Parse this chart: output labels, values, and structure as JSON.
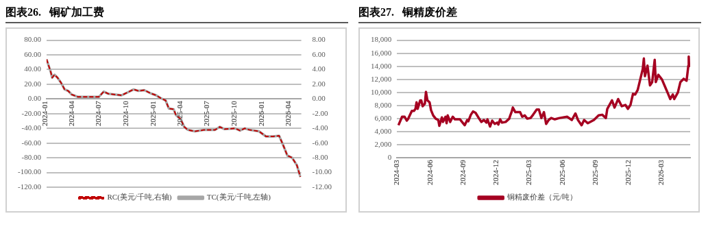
{
  "chart_data": [
    {
      "type": "line",
      "title": "图表26.   铜矿加工费",
      "legend": "bottom",
      "grid": "y",
      "xlim": [
        "2024-01-01",
        "2026-05-10"
      ],
      "xticks": [
        "2024-01",
        "2024-04",
        "2024-07",
        "2024-10",
        "2025-01",
        "2025-04",
        "2025-07",
        "2025-10",
        "2026-01",
        "2026-04"
      ],
      "ylim": [
        -120,
        80
      ],
      "yticks": [
        {
          "value": -120,
          "label": "-120.00"
        },
        {
          "value": -100,
          "label": "-100.00"
        },
        {
          "value": -80,
          "label": "-80.00"
        },
        {
          "value": -60,
          "label": "-60.00"
        },
        {
          "value": -40,
          "label": "-40.00"
        },
        {
          "value": -20,
          "label": "-20.00"
        },
        {
          "value": 0,
          "label": "0.00"
        },
        {
          "value": 20,
          "label": "20.00"
        },
        {
          "value": 40,
          "label": "40.00"
        },
        {
          "value": 60,
          "label": "60.00"
        },
        {
          "value": 80,
          "label": "80.00"
        }
      ],
      "y2lim": [
        -12,
        8
      ],
      "y2ticks": [
        {
          "value": -12,
          "label": "-12.00"
        },
        {
          "value": -10,
          "label": "-10.00"
        },
        {
          "value": -8,
          "label": "-8.00"
        },
        {
          "value": -6,
          "label": "-6.00"
        },
        {
          "value": -4,
          "label": "-4.00"
        },
        {
          "value": -2,
          "label": "-2.00"
        },
        {
          "value": 0,
          "label": "0.00"
        },
        {
          "value": 2,
          "label": "2.00"
        },
        {
          "value": 4,
          "label": "4.00"
        },
        {
          "value": 6,
          "label": "6.00"
        },
        {
          "value": 8,
          "label": "8.00"
        }
      ],
      "x": [
        "2024-01-01",
        "2024-01-15",
        "2024-01-20",
        "2024-01-28",
        "2024-02-07",
        "2024-02-19",
        "2024-03-02",
        "2024-03-14",
        "2024-03-26",
        "2024-04-15",
        "2024-05-09",
        "2024-06-26",
        "2024-07-12",
        "2024-07-28",
        "2024-08-21",
        "2024-09-10",
        "2024-10-01",
        "2024-10-21",
        "2024-11-06",
        "2024-11-26",
        "2024-12-16",
        "2025-01-05",
        "2025-01-21",
        "2025-02-06",
        "2025-02-17",
        "2025-03-05",
        "2025-03-13",
        "2025-03-28",
        "2025-04-10",
        "2025-04-22",
        "2025-05-16",
        "2025-06-17",
        "2025-07-23",
        "2025-08-08",
        "2025-08-24",
        "2025-09-29",
        "2025-10-15",
        "2025-10-31",
        "2025-11-16",
        "2025-12-18",
        "2026-01-11",
        "2026-02-04",
        "2026-02-24",
        "2026-03-08",
        "2026-03-24",
        "2026-04-09",
        "2026-04-25",
        "2026-05-07"
      ],
      "series": [
        {
          "name": "TC(美元/千吨,左轴)",
          "color": "#a6a6a6",
          "line_style": "solid",
          "values": [
            54,
            37,
            29,
            33,
            29,
            22,
            13,
            11,
            6,
            3,
            3,
            3,
            10,
            7,
            6,
            5,
            9,
            13,
            11,
            12,
            8,
            5,
            1,
            -2,
            -13,
            -14,
            -22,
            -27,
            -38,
            -42,
            -44,
            -42,
            -42,
            -38,
            -41,
            -40,
            -43,
            -40,
            -42,
            -44,
            -51,
            -51,
            -50,
            -61,
            -77,
            -80,
            -90,
            -106
          ]
        },
        {
          "name": "RC(美元/千吨,右轴)",
          "color": "#c00000",
          "line_style": "dashed",
          "axis": "y2",
          "values": [
            5.4,
            3.7,
            2.9,
            3.3,
            2.9,
            2.2,
            1.3,
            1.1,
            0.6,
            0.3,
            0.3,
            0.3,
            1.0,
            0.7,
            0.6,
            0.5,
            0.9,
            1.3,
            1.1,
            1.2,
            0.8,
            0.5,
            0.1,
            -0.2,
            -1.3,
            -1.4,
            -2.2,
            -2.7,
            -3.8,
            -4.2,
            -4.4,
            -4.2,
            -4.2,
            -3.8,
            -4.1,
            -4.0,
            -4.3,
            -4.0,
            -4.2,
            -4.4,
            -5.1,
            -5.1,
            -5.0,
            -6.1,
            -7.7,
            -8.0,
            -9.0,
            -10.6
          ]
        }
      ]
    },
    {
      "type": "line",
      "title": "图表27.   铜精废价差",
      "legend": "bottom",
      "grid": "y",
      "xlim": [
        "2024-02-26",
        "2026-05-16"
      ],
      "xticks": [
        "2024-03",
        "2024-06",
        "2024-09",
        "2024-12",
        "2025-03",
        "2025-06",
        "2025-09",
        "2025-12",
        "2026-03"
      ],
      "ylim": [
        0,
        18000
      ],
      "yticks": [
        0,
        {
          "value": 2000,
          "label": "2,000"
        },
        {
          "value": 4000,
          "label": "4,000"
        },
        {
          "value": 6000,
          "label": "6,000"
        },
        {
          "value": 8000,
          "label": "8,000"
        },
        {
          "value": 10000,
          "label": "10,000"
        },
        {
          "value": 12000,
          "label": "12,000"
        },
        {
          "value": 14000,
          "label": "14,000"
        },
        {
          "value": 16000,
          "label": "16,000"
        },
        {
          "value": 18000,
          "label": "18,000"
        }
      ],
      "x": [
        "2024-03-01",
        "2024-03-11",
        "2024-03-18",
        "2024-03-24",
        "2024-03-28",
        "2024-04-07",
        "2024-04-13",
        "2024-04-17",
        "2024-04-20",
        "2024-04-23",
        "2024-04-30",
        "2024-05-03",
        "2024-05-07",
        "2024-05-13",
        "2024-05-16",
        "2024-05-20",
        "2024-05-26",
        "2024-05-30",
        "2024-06-05",
        "2024-06-12",
        "2024-06-19",
        "2024-06-22",
        "2024-06-29",
        "2024-07-02",
        "2024-07-09",
        "2024-07-12",
        "2024-07-15",
        "2024-07-22",
        "2024-07-29",
        "2024-08-04",
        "2024-08-18",
        "2024-08-31",
        "2024-09-07",
        "2024-09-10",
        "2024-09-17",
        "2024-09-23",
        "2024-09-30",
        "2024-10-10",
        "2024-10-16",
        "2024-10-23",
        "2024-10-30",
        "2024-11-02",
        "2024-11-09",
        "2024-11-15",
        "2024-11-22",
        "2024-11-29",
        "2024-12-02",
        "2024-12-07",
        "2024-12-12",
        "2024-12-22",
        "2025-01-01",
        "2025-01-04",
        "2025-01-08",
        "2025-01-11",
        "2025-01-18",
        "2025-01-31",
        "2025-02-06",
        "2025-02-13",
        "2025-02-20",
        "2025-03-01",
        "2025-03-08",
        "2025-03-18",
        "2025-03-24",
        "2025-03-31",
        "2025-04-07",
        "2025-04-13",
        "2025-04-20",
        "2025-04-27",
        "2025-05-07",
        "2025-05-20",
        "2025-06-10",
        "2025-06-23",
        "2025-07-03",
        "2025-07-10",
        "2025-07-20",
        "2025-07-27",
        "2025-08-06",
        "2025-08-23",
        "2025-09-05",
        "2025-09-15",
        "2025-09-25",
        "2025-09-29",
        "2025-10-12",
        "2025-10-19",
        "2025-10-29",
        "2025-11-08",
        "2025-11-18",
        "2025-11-25",
        "2025-12-02",
        "2025-12-09",
        "2025-12-15",
        "2025-12-22",
        "2025-12-29",
        "2026-01-05",
        "2026-01-08",
        "2026-01-11",
        "2026-01-18",
        "2026-01-25",
        "2026-01-31",
        "2026-02-07",
        "2026-02-10",
        "2026-02-17",
        "2026-02-27",
        "2026-03-09",
        "2026-03-16",
        "2026-03-22",
        "2026-03-29",
        "2026-04-02",
        "2026-04-12",
        "2026-04-19",
        "2026-04-28",
        "2026-05-06",
        "2026-05-11",
        "2026-05-12",
        "2026-05-13"
      ],
      "series": [
        {
          "name": "铜精废价差（元/吨）",
          "color": "#a50021",
          "line_style": "solid",
          "values": [
            5000,
            6300,
            6300,
            5700,
            6000,
            7200,
            7200,
            7500,
            8500,
            7500,
            8800,
            8800,
            7900,
            8300,
            10100,
            8800,
            8500,
            7300,
            6500,
            6000,
            5800,
            4900,
            6200,
            5500,
            6300,
            5300,
            6500,
            5500,
            6300,
            5900,
            5900,
            5000,
            5800,
            5600,
            6600,
            7100,
            6900,
            6000,
            5500,
            5800,
            5400,
            5900,
            4800,
            5700,
            5200,
            5400,
            5100,
            5900,
            5400,
            5500,
            6000,
            6500,
            7100,
            7700,
            7000,
            7000,
            6300,
            6500,
            6000,
            6100,
            6600,
            7400,
            7400,
            6100,
            7000,
            5200,
            5800,
            6100,
            5900,
            6100,
            6300,
            5800,
            6800,
            5800,
            5000,
            5800,
            5300,
            5800,
            6500,
            6600,
            6100,
            7500,
            8800,
            7700,
            9000,
            7900,
            8100,
            7500,
            8100,
            9800,
            9700,
            10400,
            12000,
            13600,
            15200,
            12500,
            14100,
            11100,
            11600,
            15000,
            11600,
            12700,
            12000,
            10700,
            9800,
            9000,
            9700,
            9000,
            10000,
            11600,
            12100,
            11800,
            14100,
            15500,
            13900
          ]
        }
      ]
    }
  ]
}
